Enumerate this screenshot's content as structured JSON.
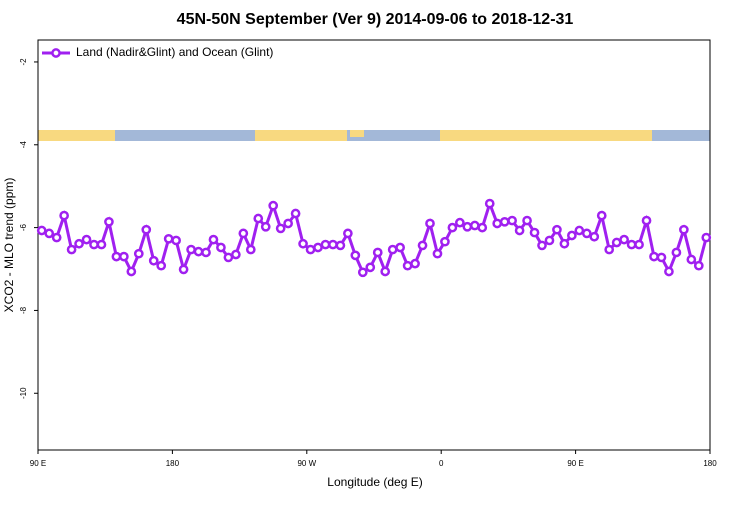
{
  "chart_data": {
    "type": "line",
    "title": "45N-50N September (Ver 9)   2014-09-06 to 2018-12-31",
    "x_label": "Longitude (deg E)",
    "y_label": "XCO2 - MLO trend (ppm)",
    "x": [
      92.5,
      97.5,
      102.5,
      107.5,
      112.5,
      117.5,
      122.5,
      127.5,
      132.5,
      137.5,
      142.5,
      147.5,
      152.5,
      157.5,
      162.5,
      167.5,
      172.5,
      177.5,
      182.5,
      187.5,
      192.5,
      197.5,
      202.5,
      207.5,
      212.5,
      217.5,
      222.5,
      227.5,
      232.5,
      237.5,
      242.5,
      247.5,
      252.5,
      257.5,
      262.5,
      267.5,
      272.5,
      277.5,
      282.5,
      287.5,
      292.5,
      297.5,
      302.5,
      307.5,
      312.5,
      317.5,
      322.5,
      327.5,
      332.5,
      337.5,
      342.5,
      347.5,
      352.5,
      357.5,
      362.5,
      367.5,
      372.5,
      377.5,
      382.5,
      387.5,
      392.5,
      397.5,
      402.5,
      407.5,
      412.5,
      417.5,
      422.5,
      427.5,
      432.5,
      437.5,
      442.5,
      447.5,
      452.5,
      457.5,
      462.5,
      467.5,
      472.5,
      477.5,
      482.5,
      487.5,
      492.5,
      497.5,
      502.5,
      507.5,
      512.5,
      517.5,
      522.5,
      527.5,
      532.5,
      537.5
    ],
    "series": [
      {
        "name": "Land (Nadir&Glint) and Ocean (Glint)",
        "color": "#a020f0",
        "values": [
          -6.07,
          -6.14,
          -6.24,
          -5.71,
          -6.53,
          -6.39,
          -6.29,
          -6.41,
          -6.41,
          -5.86,
          -6.7,
          -6.7,
          -7.06,
          -6.63,
          -6.05,
          -6.8,
          -6.92,
          -6.27,
          -6.31,
          -7.01,
          -6.53,
          -6.58,
          -6.6,
          -6.29,
          -6.48,
          -6.72,
          -6.65,
          -6.14,
          -6.53,
          -5.78,
          -5.98,
          -5.47,
          -6.02,
          -5.9,
          -5.66,
          -6.39,
          -6.53,
          -6.48,
          -6.41,
          -6.41,
          -6.43,
          -6.14,
          -6.67,
          -7.08,
          -6.96,
          -6.6,
          -7.06,
          -6.53,
          -6.48,
          -6.92,
          -6.87,
          -6.43,
          -5.9,
          -6.63,
          -6.34,
          -6.0,
          -5.88,
          -5.98,
          -5.95,
          -6.0,
          -5.42,
          -5.9,
          -5.86,
          -5.83,
          -6.07,
          -5.83,
          -6.12,
          -6.43,
          -6.31,
          -6.05,
          -6.39,
          -6.19,
          -6.07,
          -6.14,
          -6.22,
          -5.71,
          -6.53,
          -6.36,
          -6.29,
          -6.41,
          -6.41,
          -5.83,
          -6.7,
          -6.72,
          -7.06,
          -6.6,
          -6.05,
          -6.77,
          -6.92,
          -6.24
        ]
      }
    ],
    "xlim": [
      90,
      540
    ],
    "xticks": [
      {
        "value": 90,
        "label": "90 E"
      },
      180,
      {
        "value": 270,
        "label": "90 W"
      },
      {
        "value": 360,
        "label": "0"
      },
      {
        "value": 450,
        "label": "90 E"
      },
      {
        "value": 540,
        "label": "180"
      }
    ],
    "ylim": [
      -11.37,
      -1.47
    ],
    "yticks": [
      -2,
      -4,
      -6,
      -8,
      -10
    ],
    "legend": "top-left"
  }
}
